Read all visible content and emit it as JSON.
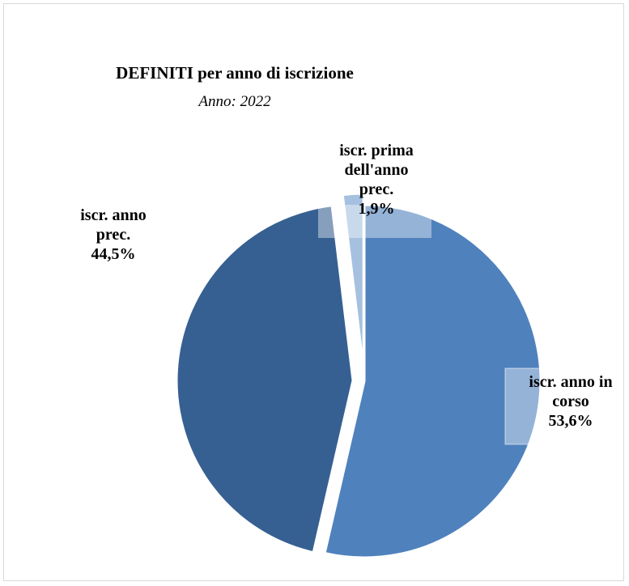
{
  "chart_data": {
    "type": "pie",
    "title": "DEFINITI per anno di iscrizione",
    "subtitle": "Anno: 2022",
    "slices": [
      {
        "label_lines": [
          "iscr. anno in",
          "corso"
        ],
        "pct_label": "53,6%",
        "value": 53.6,
        "color": "#4f81bd",
        "exploded": false
      },
      {
        "label_lines": [
          "iscr. anno",
          "prec."
        ],
        "pct_label": "44,5%",
        "value": 44.5,
        "color": "#366092",
        "exploded": true
      },
      {
        "label_lines": [
          "iscr. prima",
          "dell'anno",
          "prec."
        ],
        "pct_label": "1,9%",
        "value": 1.9,
        "color": "#a6c0e0",
        "exploded": true
      }
    ]
  }
}
